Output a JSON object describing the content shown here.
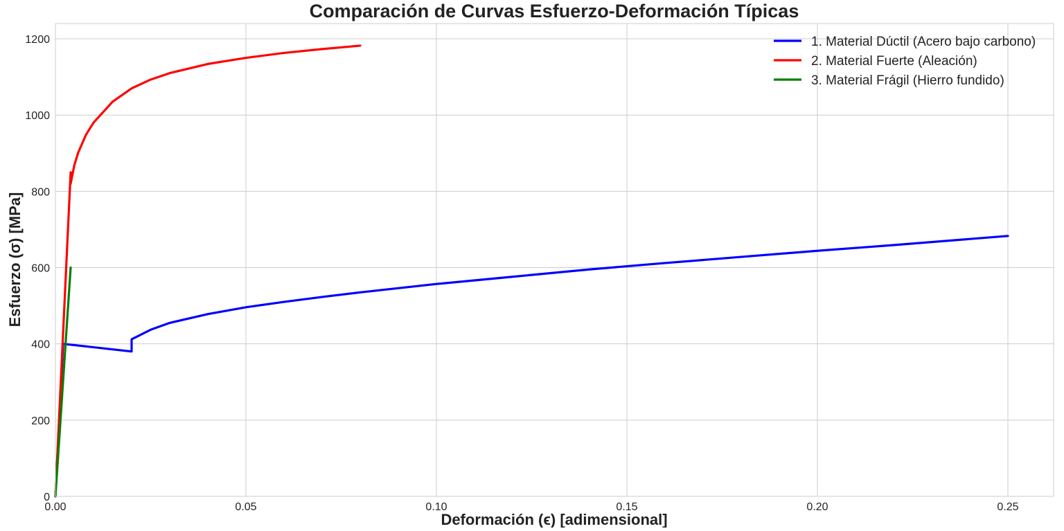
{
  "chart_data": {
    "type": "line",
    "title": "Comparación de Curvas Esfuerzo-Deformación Típicas",
    "xlabel": "Deformación (ϵ) [adimensional]",
    "ylabel": "Esfuerzo (σ) [MPa]",
    "xlim": [
      0,
      0.262
    ],
    "ylim": [
      0,
      1240
    ],
    "grid": true,
    "legend_position": "top-right",
    "x_ticks": [
      0.0,
      0.05,
      0.1,
      0.15,
      0.2,
      0.25
    ],
    "x_tick_labels": [
      "0.00",
      "0.05",
      "0.10",
      "0.15",
      "0.20",
      "0.25"
    ],
    "y_ticks": [
      0,
      200,
      400,
      600,
      800,
      1000,
      1200
    ],
    "y_tick_labels": [
      "0",
      "200",
      "400",
      "600",
      "800",
      "1000",
      "1200"
    ],
    "series": [
      {
        "name": "1. Material Dúctil (Acero bajo carbono)",
        "color": "#0000ff",
        "x": [
          0,
          0.002,
          0.02,
          0.02,
          0.025,
          0.03,
          0.04,
          0.05,
          0.06,
          0.07,
          0.08,
          0.1,
          0.12,
          0.14,
          0.16,
          0.18,
          0.2,
          0.22,
          0.25
        ],
        "y": [
          0,
          400,
          380,
          412,
          437,
          455,
          478,
          496,
          510,
          523,
          535,
          557,
          576,
          595,
          612,
          628,
          644,
          659,
          683
        ]
      },
      {
        "name": "2. Material Fuerte (Aleación)",
        "color": "#ff0000",
        "x": [
          0,
          0.004,
          0.004,
          0.005,
          0.006,
          0.008,
          0.01,
          0.015,
          0.02,
          0.025,
          0.03,
          0.04,
          0.05,
          0.06,
          0.07,
          0.08
        ],
        "y": [
          0,
          850,
          820,
          870,
          902,
          948,
          980,
          1035,
          1070,
          1093,
          1110,
          1134,
          1150,
          1163,
          1173,
          1182
        ]
      },
      {
        "name": "3. Material Frágil (Hierro fundido)",
        "color": "#008000",
        "x": [
          0,
          0.004
        ],
        "y": [
          0,
          600
        ]
      }
    ]
  }
}
